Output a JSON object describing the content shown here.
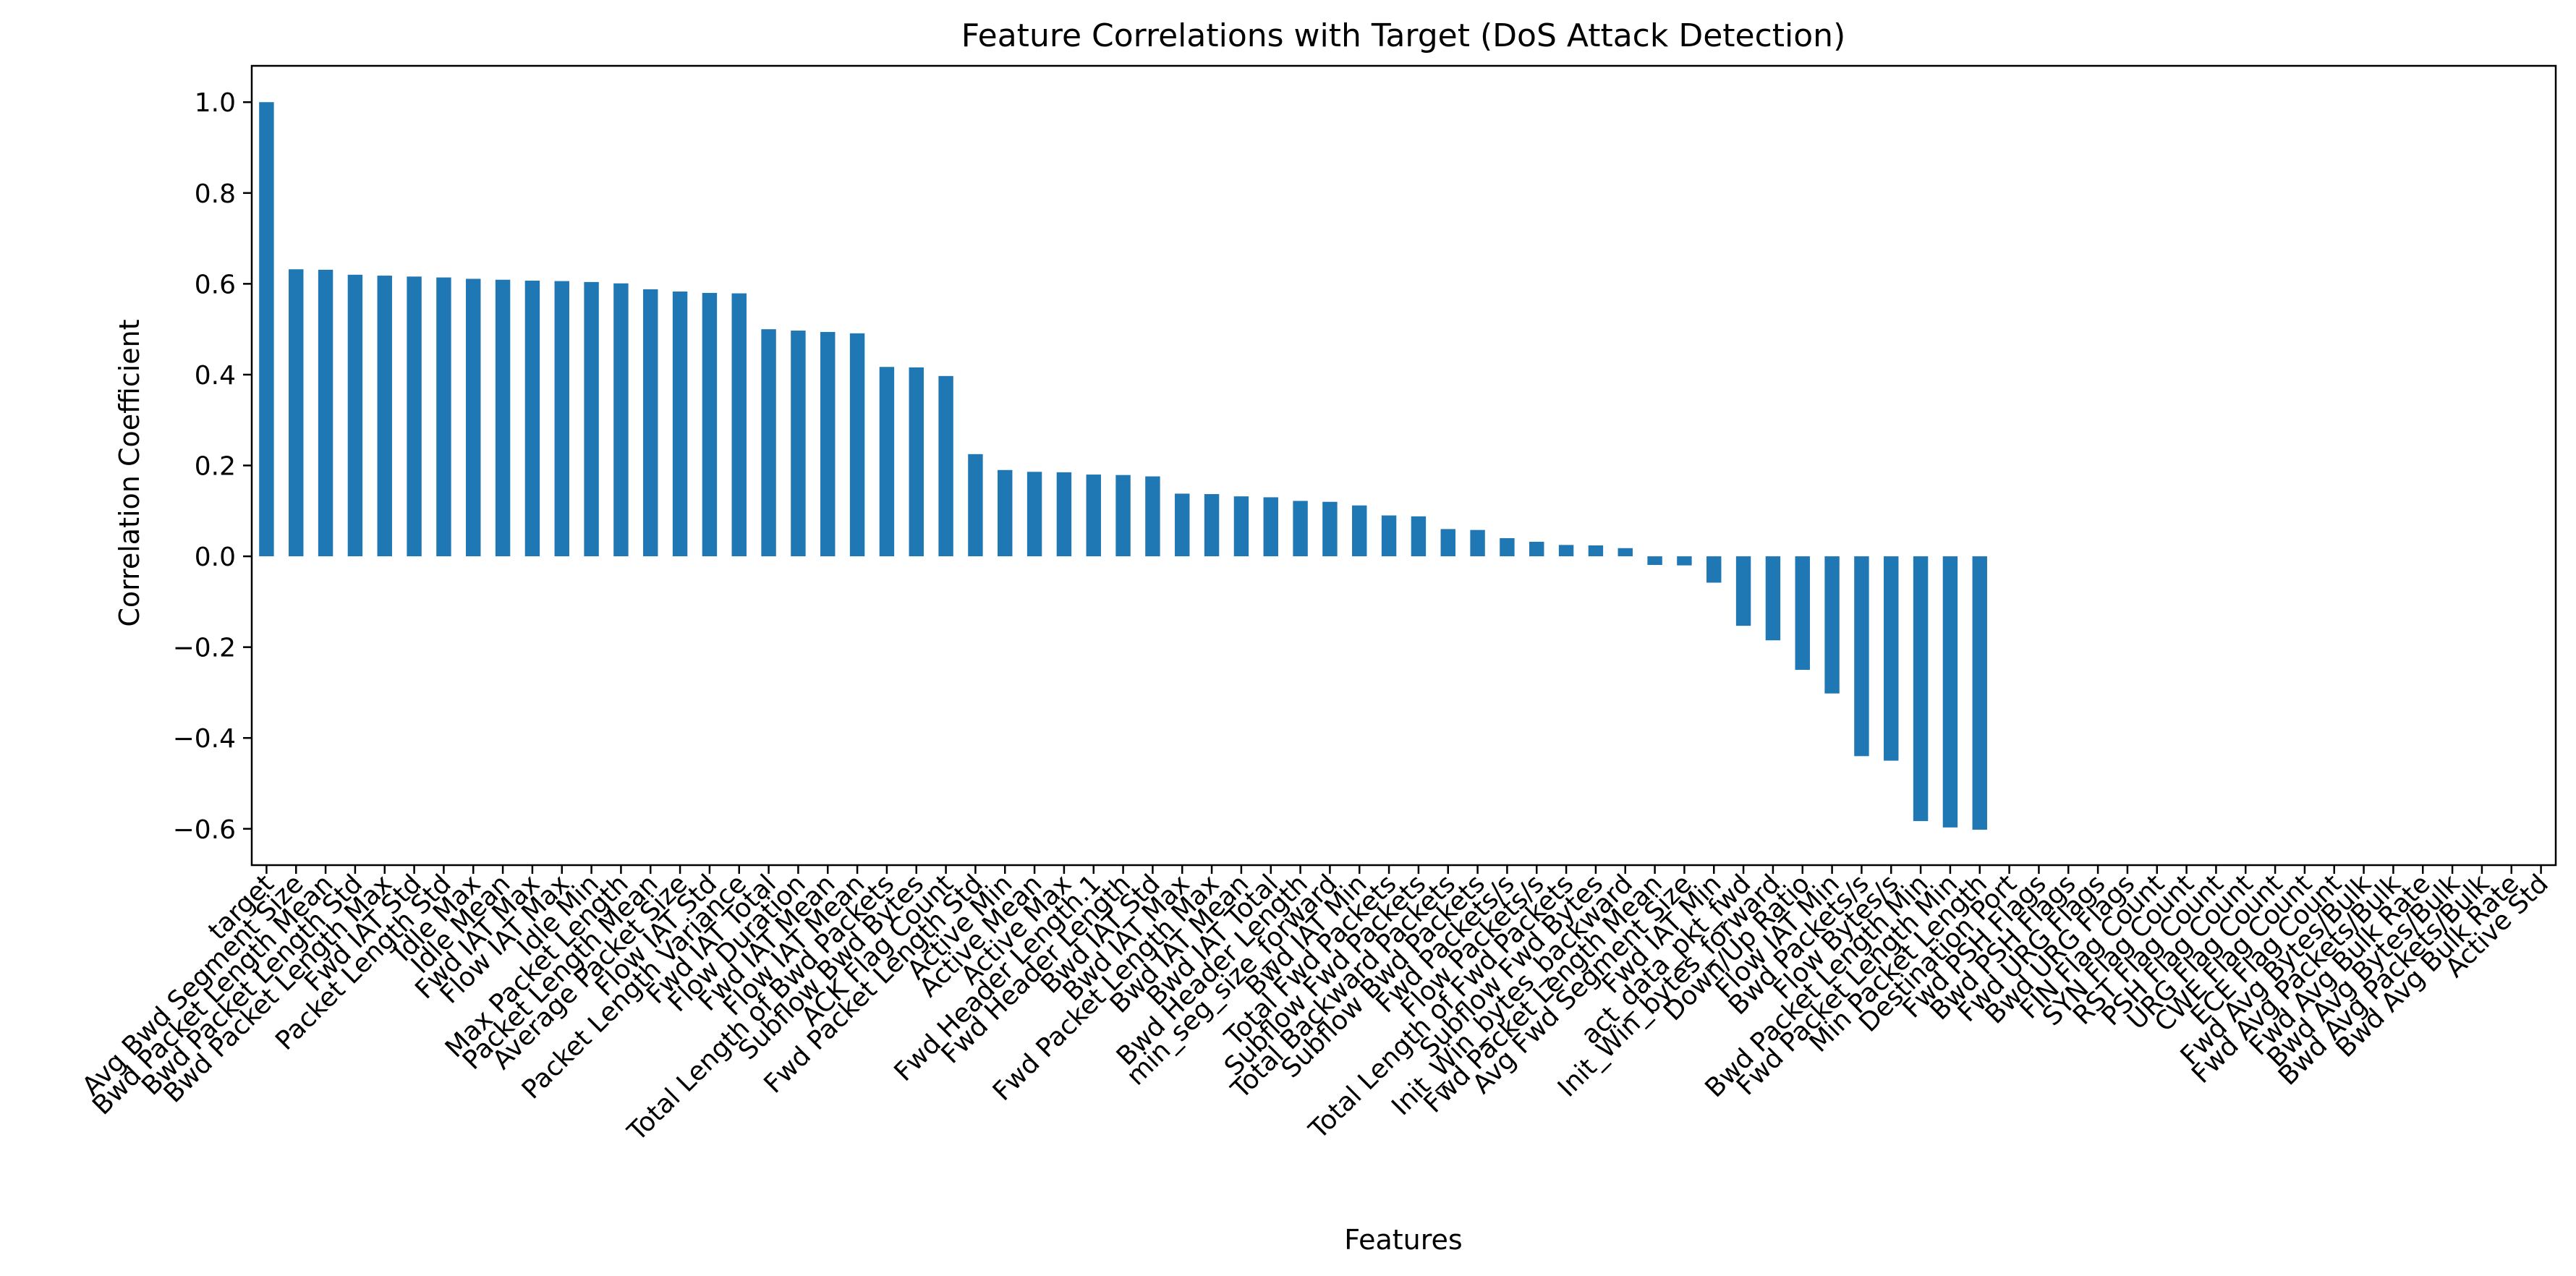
{
  "chart_data": {
    "type": "bar",
    "title": "Feature Correlations with Target (DoS Attack Detection)",
    "xlabel": "Features",
    "ylabel": "Correlation Coefficient",
    "ylim": [
      -0.68,
      1.08
    ],
    "yticks": [
      -0.6,
      -0.4,
      -0.2,
      0.0,
      0.2,
      0.4,
      0.6,
      0.8,
      1.0
    ],
    "ytick_labels": [
      "−0.6",
      "−0.4",
      "−0.2",
      "0.0",
      "0.2",
      "0.4",
      "0.6",
      "0.8",
      "1.0"
    ],
    "grid": false,
    "legend": "none",
    "bar_color": "#1f77b4",
    "categories": [
      "target",
      "Avg Bwd Segment Size",
      "Bwd Packet Length Mean",
      "Bwd Packet Length Std",
      "Bwd Packet Length Max",
      "Fwd IAT Std",
      "Packet Length Std",
      "Idle Max",
      "Idle Mean",
      "Fwd IAT Max",
      "Flow IAT Max",
      "Idle Min",
      "Max Packet Length",
      "Packet Length Mean",
      "Average Packet Size",
      "Flow IAT Std",
      "Packet Length Variance",
      "Fwd IAT Total",
      "Flow Duration",
      "Fwd IAT Mean",
      "Flow IAT Mean",
      "Total Length of Bwd Packets",
      "Subflow Bwd Bytes",
      "ACK Flag Count",
      "Fwd Packet Length Std",
      "Active Min",
      "Active Mean",
      "Active Max",
      "Fwd Header Length.1",
      "Fwd Header Length",
      "Bwd IAT Std",
      "Bwd IAT Max",
      "Fwd Packet Length Max",
      "Bwd IAT Mean",
      "Bwd IAT Total",
      "Bwd Header Length",
      "min_seg_size_forward",
      "Bwd IAT Min",
      "Total Fwd Packets",
      "Subflow Fwd Packets",
      "Total Backward Packets",
      "Subflow Bwd Packets",
      "Fwd Packets/s",
      "Flow Packets/s",
      "Total Length of Fwd Packets",
      "Subflow Fwd Bytes",
      "Init_Win_bytes_backward",
      "Fwd Packet Length Mean",
      "Avg Fwd Segment Size",
      "Fwd IAT Min",
      "act_data_pkt_fwd",
      "Init_Win_bytes_forward",
      "Down/Up Ratio",
      "Flow IAT Min",
      "Bwd Packets/s",
      "Flow Bytes/s",
      "Bwd Packet Length Min",
      "Fwd Packet Length Min",
      "Min Packet Length",
      "Destination Port",
      "Fwd PSH Flags",
      "Bwd PSH Flags",
      "Fwd URG Flags",
      "Bwd URG Flags",
      "FIN Flag Count",
      "SYN Flag Count",
      "RST Flag Count",
      "PSH Flag Count",
      "URG Flag Count",
      "CWE Flag Count",
      "ECE Flag Count",
      "Fwd Avg Bytes/Bulk",
      "Fwd Avg Packets/Bulk",
      "Fwd Avg Bulk Rate",
      "Bwd Avg Bytes/Bulk",
      "Bwd Avg Packets/Bulk",
      "Bwd Avg Bulk Rate",
      "Active Std"
    ],
    "values": [
      1.0,
      0.632,
      0.631,
      0.62,
      0.618,
      0.616,
      0.614,
      0.611,
      0.609,
      0.607,
      0.606,
      0.604,
      0.601,
      0.588,
      0.583,
      0.58,
      0.579,
      0.5,
      0.497,
      0.494,
      0.491,
      0.417,
      0.416,
      0.397,
      0.225,
      0.19,
      0.186,
      0.185,
      0.18,
      0.179,
      0.176,
      0.138,
      0.137,
      0.132,
      0.13,
      0.122,
      0.12,
      0.112,
      0.09,
      0.088,
      0.06,
      0.058,
      0.04,
      0.032,
      0.025,
      0.024,
      0.018,
      -0.019,
      -0.02,
      -0.058,
      -0.153,
      -0.185,
      -0.25,
      -0.302,
      -0.44,
      -0.45,
      -0.583,
      -0.597,
      -0.602,
      null,
      null,
      null,
      null,
      null,
      null,
      null,
      null,
      null,
      null,
      null,
      null,
      null,
      null,
      null,
      null,
      null,
      null,
      null
    ]
  }
}
